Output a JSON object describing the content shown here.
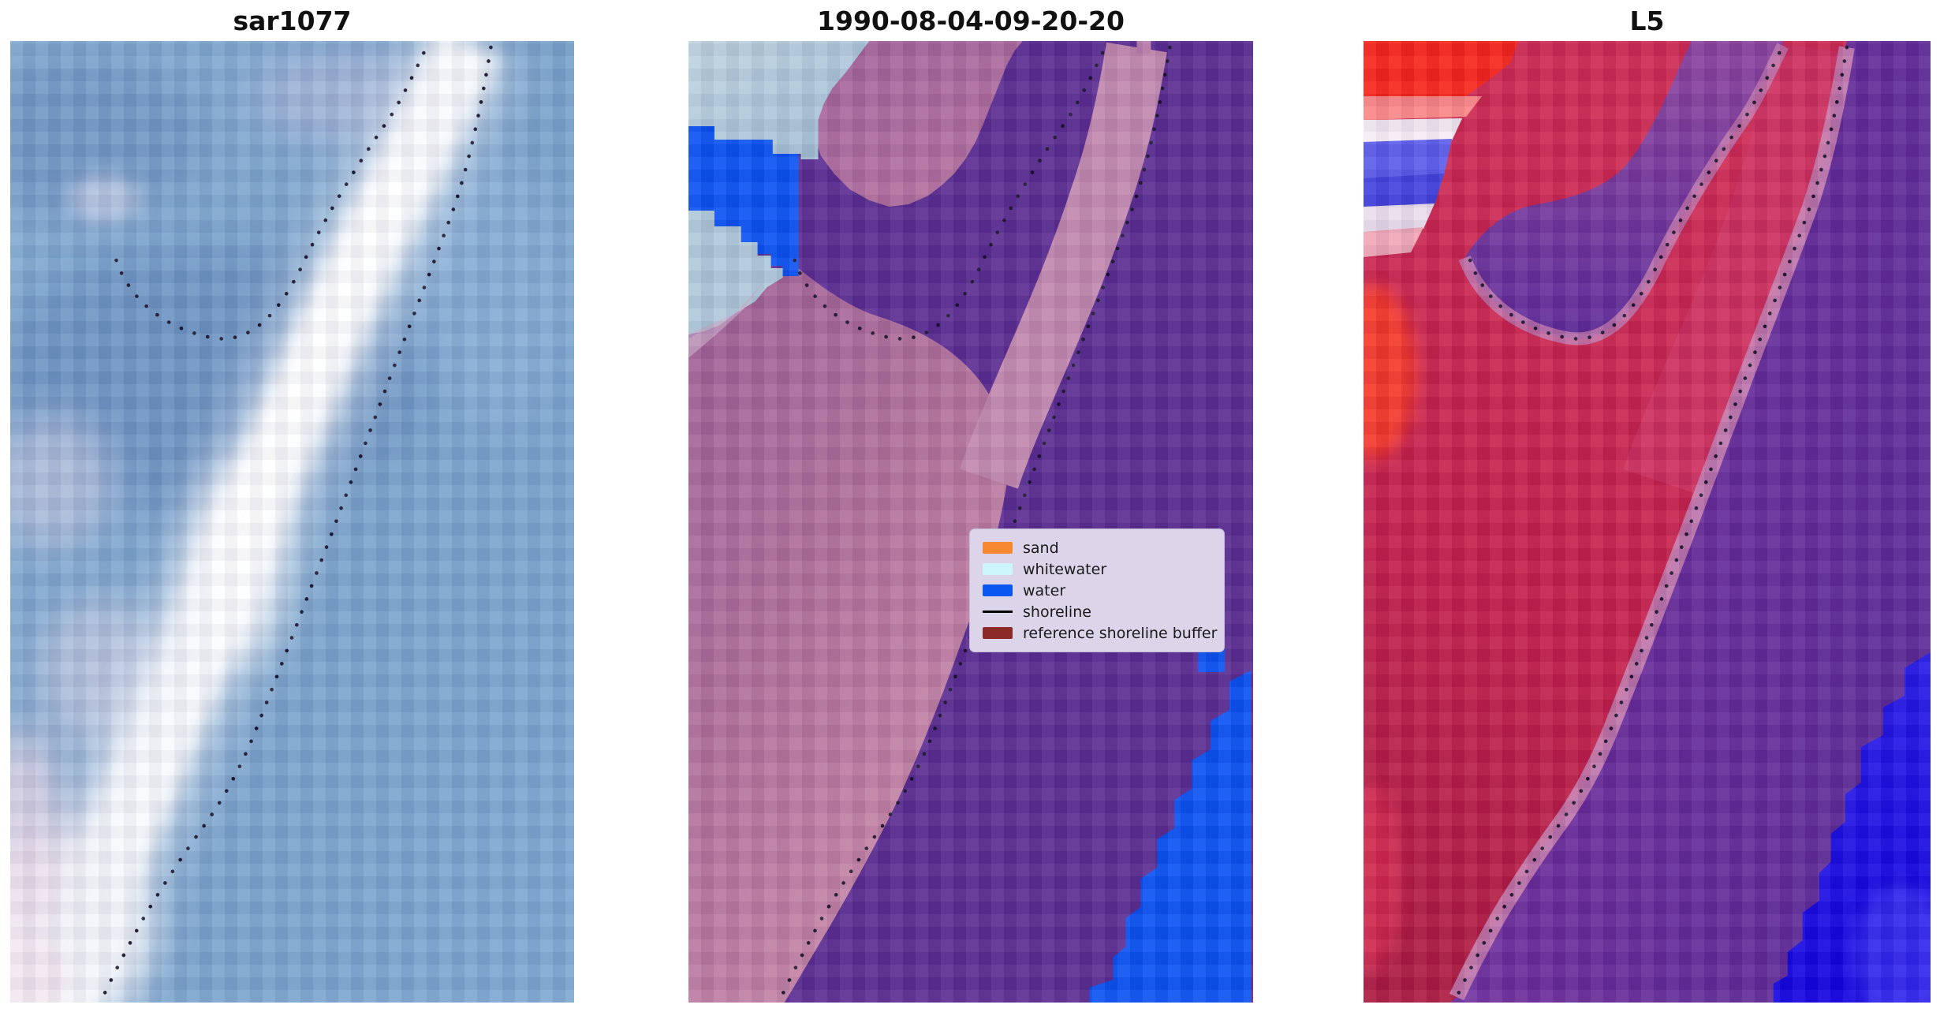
{
  "figure": {
    "background": "#ffffff"
  },
  "panels": [
    {
      "id": "sar",
      "title": "sar1077",
      "palette": [
        "#79a3cd",
        "#6d94c2",
        "#b9c3e0",
        "#ffffff",
        "#e9d9e8"
      ]
    },
    {
      "id": "classified",
      "title": "1990-08-04-09-20-20",
      "palette": [
        "#5b2d92",
        "#ab689c",
        "#c288ae",
        "#aec8d8",
        "#0b52f2"
      ]
    },
    {
      "id": "l5",
      "title": "L5",
      "palette": [
        "#c41f4b",
        "#f7251b",
        "#6b2b9a",
        "#c57cae",
        "#1c12dc"
      ]
    }
  ],
  "legend": {
    "background": "#dcd4e8",
    "items": [
      {
        "label": "sand",
        "swatch": "patch",
        "color": "#f8882f"
      },
      {
        "label": "whitewater",
        "swatch": "patch",
        "color": "#ccf6fb"
      },
      {
        "label": "water",
        "swatch": "patch",
        "color": "#0a57f2"
      },
      {
        "label": "shoreline",
        "swatch": "line",
        "color": "#000000"
      },
      {
        "label": "reference shoreline buffer",
        "swatch": "patch",
        "color": "#8b2a26"
      }
    ]
  },
  "chart_data": {
    "type": "heatmap",
    "title": "Shoreline detection comparison figure (3 co-registered image panels)",
    "panels": [
      {
        "title": "sar1077",
        "content": "SAR backscatter image in blue-white tones; bright white diagonal beach band from bottom-left to top-right; dotted detected shoreline along both sides of the band with a U-shaped hook in the upper-middle"
      },
      {
        "title": "1990-08-04-09-20-20",
        "content": "classification overlay: purple = water under reference shoreline buffer, mauve/pink = land under buffer, bright blue = water class, pale blue-grey = whitewater/cloud, dotted shoreline, blue stair-step water wedge in bottom-right; legend box inside panel"
      },
      {
        "title": "L5",
        "content": "Landsat 5 false-colour composite: crimson land, purple water, bright blue deep water wedge bottom-right, bright red and blue-white stripe patch in top-left corner, dotted shoreline"
      }
    ],
    "legend": [
      {
        "label": "sand",
        "color": "#f8882f"
      },
      {
        "label": "whitewater",
        "color": "#ccf6fb"
      },
      {
        "label": "water",
        "color": "#0a57f2"
      },
      {
        "label": "shoreline",
        "color": "#000000"
      },
      {
        "label": "reference shoreline buffer",
        "color": "#8b2a26"
      }
    ],
    "annotations": [
      "dotted black line = detected shoreline (same geography in all three panels)"
    ],
    "layout": {
      "grid": "1x3",
      "axes": "off",
      "legend_position": "inside middle panel, center-right"
    }
  }
}
